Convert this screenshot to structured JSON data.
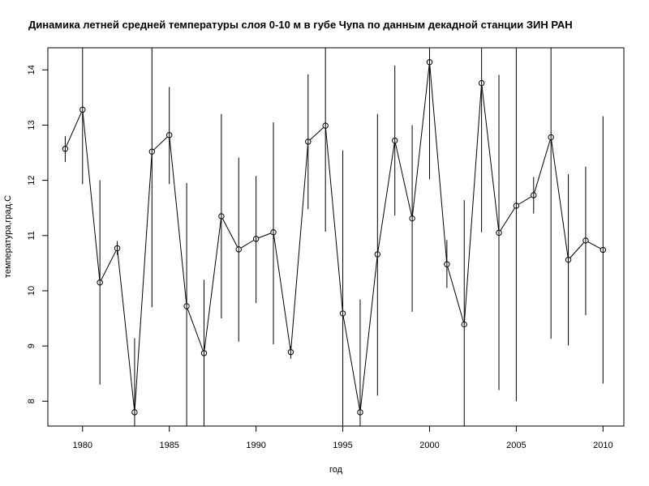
{
  "chart_data": {
    "type": "line",
    "title": "Динамика летней средней температуры слоя 0-10  м в губе Чупа по данным декадной станции ЗИН РАН",
    "xlabel": "год",
    "ylabel": "температура,град.С",
    "xlim": [
      1978,
      2011.2
    ],
    "ylim": [
      7.55,
      14.4
    ],
    "x_ticks": [
      1980,
      1985,
      1990,
      1995,
      2000,
      2005,
      2010
    ],
    "y_ticks": [
      8,
      9,
      10,
      11,
      12,
      13,
      14
    ],
    "x_tick_labels": [
      "1980",
      "1985",
      "1990",
      "1995",
      "2000",
      "2005",
      "2010"
    ],
    "y_tick_labels": [
      "8",
      "9",
      "10",
      "11",
      "12",
      "13",
      "14"
    ],
    "grid": false,
    "series": [
      {
        "x": [
          1979,
          1980,
          1981,
          1982,
          1983,
          1984,
          1985,
          1986,
          1987,
          1988,
          1989,
          1990,
          1991,
          1992,
          1993,
          1994,
          1995,
          1996,
          1997,
          1998,
          1999,
          2000,
          2001,
          2002,
          2003,
          2004,
          2005,
          2006,
          2007,
          2008,
          2009,
          2010
        ],
        "y": [
          12.57,
          13.28,
          10.15,
          10.77,
          7.8,
          12.52,
          12.82,
          9.72,
          8.87,
          11.35,
          10.75,
          10.94,
          11.06,
          8.89,
          12.7,
          12.99,
          9.59,
          7.8,
          10.66,
          12.72,
          11.31,
          14.14,
          10.48,
          9.39,
          13.76,
          11.05,
          11.54,
          11.73,
          12.78,
          10.56,
          10.91,
          10.74
        ],
        "y_low": [
          12.33,
          11.93,
          8.3,
          10.65,
          7.55,
          9.7,
          11.93,
          7.55,
          7.55,
          9.5,
          9.08,
          9.78,
          9.03,
          8.77,
          11.48,
          11.07,
          7.55,
          7.55,
          8.1,
          11.36,
          9.62,
          12.02,
          10.05,
          7.55,
          11.06,
          8.2,
          8.0,
          11.4,
          9.13,
          9.01,
          9.56,
          8.32
        ],
        "y_high": [
          12.8,
          14.4,
          12.0,
          10.9,
          9.14,
          14.4,
          13.69,
          11.95,
          10.2,
          13.2,
          12.41,
          12.08,
          13.05,
          9.0,
          13.92,
          14.4,
          12.54,
          9.84,
          13.2,
          14.08,
          13.0,
          14.4,
          10.92,
          11.64,
          14.4,
          13.91,
          14.4,
          12.06,
          14.4,
          12.11,
          12.25,
          13.16
        ]
      }
    ]
  }
}
